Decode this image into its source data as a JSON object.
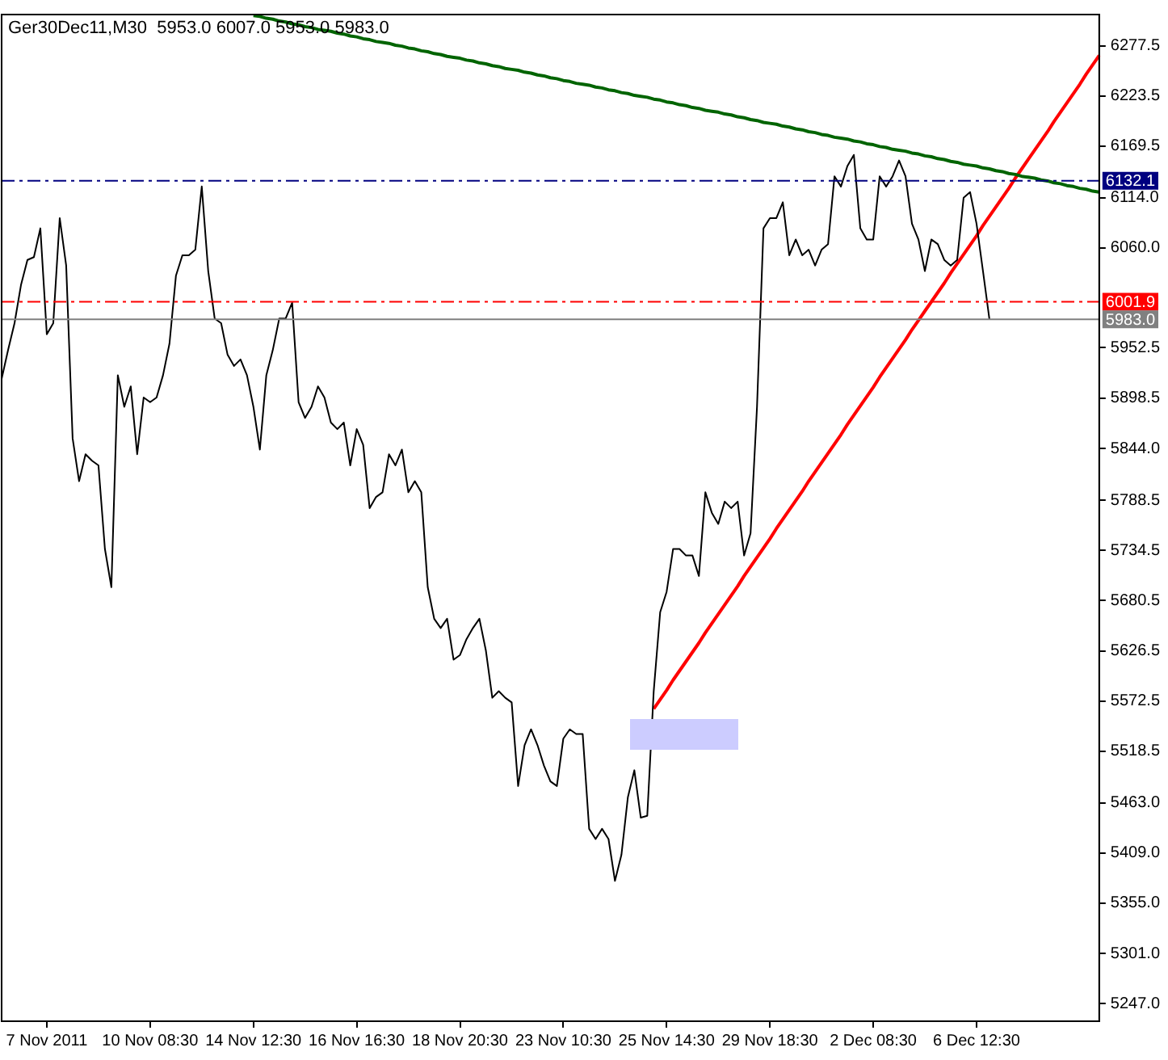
{
  "chart_data": {
    "type": "line",
    "title": "Ger30Dec11,M30  5953.0 6007.0 5953.0 5983.0",
    "categories": [
      null,
      null,
      null,
      null,
      null,
      null,
      null,
      "7 Nov 2011",
      null,
      null,
      null,
      null,
      null,
      null,
      null,
      null,
      null,
      null,
      null,
      null,
      null,
      null,
      null,
      "10 Nov 08:30",
      null,
      null,
      null,
      null,
      null,
      null,
      null,
      null,
      null,
      null,
      null,
      null,
      null,
      null,
      null,
      "14 Nov 12:30",
      null,
      null,
      null,
      null,
      null,
      null,
      null,
      null,
      null,
      null,
      null,
      null,
      null,
      null,
      null,
      "16 Nov 16:30",
      null,
      null,
      null,
      null,
      null,
      null,
      null,
      null,
      null,
      null,
      null,
      null,
      null,
      null,
      null,
      "18 Nov 20:30",
      null,
      null,
      null,
      null,
      null,
      null,
      null,
      null,
      null,
      null,
      null,
      null,
      null,
      null,
      null,
      "23 Nov 10:30",
      null,
      null,
      null,
      null,
      null,
      null,
      null,
      null,
      null,
      null,
      null,
      null,
      null,
      null,
      null,
      "25 Nov 14:30",
      null,
      null,
      null,
      null,
      null,
      null,
      null,
      null,
      null,
      null,
      null,
      null,
      null,
      null,
      null,
      "29 Nov 18:30",
      null,
      null,
      null,
      null,
      null,
      null,
      null,
      null,
      null,
      null,
      null,
      null,
      null,
      null,
      null,
      "2 Dec 08:30",
      null,
      null,
      null,
      null,
      null,
      null,
      null,
      null,
      null,
      null,
      null,
      null,
      null,
      null,
      null,
      "6 Dec 12:30",
      null,
      null,
      null,
      null,
      null,
      null,
      null,
      null,
      null,
      null,
      null,
      null,
      null,
      null,
      null,
      null,
      null,
      null,
      null
    ],
    "ylim": [
      5228,
      6311
    ],
    "yticks": [
      {
        "value": 6277.5,
        "label": "6277.5"
      },
      {
        "value": 6223.5,
        "label": "6223.5"
      },
      {
        "value": 6169.5,
        "label": "6169.5"
      },
      {
        "value": 6114,
        "label": "6114.0"
      },
      {
        "value": 6060,
        "label": "6060.0"
      },
      {
        "value": 5952.5,
        "label": "5952.5"
      },
      {
        "value": 5898.5,
        "label": "5898.5"
      },
      {
        "value": 5844,
        "label": "5844.0"
      },
      {
        "value": 5788.5,
        "label": "5788.5"
      },
      {
        "value": 5734.5,
        "label": "5734.5"
      },
      {
        "value": 5680.5,
        "label": "5680.5"
      },
      {
        "value": 5626.5,
        "label": "5626.5"
      },
      {
        "value": 5572.5,
        "label": "5572.5"
      },
      {
        "value": 5518.5,
        "label": "5518.5"
      },
      {
        "value": 5463,
        "label": "5463.0"
      },
      {
        "value": 5409,
        "label": "5409.0"
      },
      {
        "value": 5355,
        "label": "5355.0"
      },
      {
        "value": 5301,
        "label": "5301.0"
      },
      {
        "value": 5247,
        "label": "5247.0"
      }
    ],
    "grid": false,
    "legend": false,
    "marker": "none",
    "series": [
      {
        "color": "#000000",
        "values": [
          5919,
          5950,
          5979,
          6020,
          6047,
          6050,
          6081,
          5967,
          5979,
          6092,
          6041,
          5855,
          5809,
          5838,
          5831,
          5826,
          5736,
          5695,
          5923,
          5889,
          5911,
          5838,
          5899,
          5894,
          5899,
          5923,
          5957,
          6030,
          6052,
          6052,
          6058,
          6126,
          6035,
          5984,
          5979,
          5945,
          5933,
          5940,
          5923,
          5889,
          5843,
          5923,
          5950,
          5984,
          5984,
          6001,
          5894,
          5877,
          5889,
          5911,
          5899,
          5872,
          5865,
          5872,
          5826,
          5865,
          5848,
          5780,
          5792,
          5797,
          5838,
          5826,
          5843,
          5797,
          5809,
          5797,
          5695,
          5661,
          5651,
          5661,
          5617,
          5622,
          5639,
          5651,
          5661,
          5627,
          5576,
          5583,
          5576,
          5571,
          5481,
          5525,
          5542,
          5525,
          5503,
          5486,
          5481,
          5532,
          5542,
          5537,
          5537,
          5435,
          5424,
          5435,
          5424,
          5379,
          5407,
          5469,
          5498,
          5447,
          5449,
          5583,
          5668,
          5690,
          5736,
          5736,
          5729,
          5729,
          5707,
          5797,
          5775,
          5763,
          5787,
          5780,
          5787,
          5729,
          5753,
          5889,
          6081,
          6092,
          6092,
          6109,
          6052,
          6069,
          6052,
          6058,
          6041,
          6058,
          6064,
          6137,
          6126,
          6148,
          6160,
          6081,
          6069,
          6069,
          6137,
          6126,
          6137,
          6154,
          6137,
          6086,
          6069,
          6035,
          6069,
          6064,
          6047,
          6041,
          6047,
          6114,
          6120,
          6086,
          6035,
          5983,
          null,
          null,
          null,
          null,
          null,
          null,
          null,
          null,
          null,
          null,
          null,
          null,
          null,
          null,
          null,
          null,
          null
        ]
      },
      {
        "type": "line",
        "color": "#006400",
        "values": [
          null,
          null,
          null,
          null,
          null,
          null,
          null,
          null,
          null,
          null,
          null,
          null,
          null,
          null,
          null,
          null,
          null,
          null,
          null,
          null,
          null,
          null,
          null,
          null,
          null,
          null,
          null,
          null,
          null,
          null,
          null,
          null,
          null,
          null,
          null,
          null,
          null,
          null,
          null,
          6310,
          6309,
          6307,
          6306,
          6304,
          6303,
          6301,
          6300,
          6298,
          6297,
          6295,
          6294,
          6293,
          6291,
          6290,
          6288,
          6287,
          6285,
          6284,
          6282,
          6281,
          6280,
          6278,
          6277,
          6275,
          6274,
          6272,
          6271,
          6269,
          6268,
          6266,
          6265,
          6264,
          6262,
          6261,
          6259,
          6258,
          6256,
          6255,
          6253,
          6252,
          6251,
          6249,
          6248,
          6246,
          6245,
          6243,
          6242,
          6240,
          6239,
          6237,
          6236,
          6235,
          6233,
          6232,
          6230,
          6229,
          6227,
          6226,
          6224,
          6223,
          6222,
          6220,
          6219,
          6217,
          6216,
          6214,
          6213,
          6211,
          6210,
          6208,
          6207,
          6206,
          6204,
          6203,
          6201,
          6200,
          6198,
          6197,
          6195,
          6194,
          6193,
          6191,
          6190,
          6188,
          6187,
          6185,
          6184,
          6182,
          6181,
          6179,
          6178,
          6177,
          6175,
          6174,
          6172,
          6171,
          6169,
          6168,
          6166,
          6165,
          6164,
          6162,
          6161,
          6159,
          6158,
          6156,
          6155,
          6153,
          6152,
          6150,
          6149,
          6148,
          6146,
          6145,
          6143,
          6142,
          6140,
          6139,
          6137,
          6136,
          6135,
          6133,
          6132,
          6130,
          6129,
          6127,
          6126,
          6124,
          6123,
          6121,
          6120
        ]
      },
      {
        "type": "line",
        "color": "#ff0000",
        "values": [
          null,
          null,
          null,
          null,
          null,
          null,
          null,
          null,
          null,
          null,
          null,
          null,
          null,
          null,
          null,
          null,
          null,
          null,
          null,
          null,
          null,
          null,
          null,
          null,
          null,
          null,
          null,
          null,
          null,
          null,
          null,
          null,
          null,
          null,
          null,
          null,
          null,
          null,
          null,
          null,
          null,
          null,
          null,
          null,
          null,
          null,
          null,
          null,
          null,
          null,
          null,
          null,
          null,
          null,
          null,
          null,
          null,
          null,
          null,
          null,
          null,
          null,
          null,
          null,
          null,
          null,
          null,
          null,
          null,
          null,
          null,
          null,
          null,
          null,
          null,
          null,
          null,
          null,
          null,
          null,
          null,
          null,
          null,
          null,
          null,
          null,
          null,
          null,
          null,
          null,
          null,
          null,
          null,
          null,
          null,
          null,
          null,
          null,
          null,
          null,
          null,
          5564,
          5574,
          5584,
          5595,
          5605,
          5615,
          5625,
          5635,
          5646,
          5656,
          5666,
          5676,
          5686,
          5696,
          5707,
          5717,
          5727,
          5737,
          5747,
          5758,
          5768,
          5778,
          5788,
          5798,
          5809,
          5819,
          5829,
          5839,
          5849,
          5859,
          5870,
          5880,
          5890,
          5900,
          5910,
          5921,
          5931,
          5941,
          5951,
          5961,
          5972,
          5982,
          5992,
          6002,
          6012,
          6022,
          6033,
          6043,
          6053,
          6063,
          6073,
          6084,
          6094,
          6104,
          6114,
          6124,
          6135,
          6145,
          6155,
          6165,
          6175,
          6185,
          6196,
          6206,
          6216,
          6226,
          6236,
          6247,
          6257,
          6267
        ]
      }
    ],
    "ref_lines": [
      {
        "axis": "y",
        "value": 6132.1,
        "label": "6132.1",
        "color": "#000080",
        "line_style": "dashed"
      },
      {
        "axis": "y",
        "value": 6001.9,
        "label": "6001.9",
        "color": "#ff0000",
        "line_style": "dashed"
      },
      {
        "axis": "y",
        "value": 5983.0,
        "label": "5983.0",
        "color": "#808080",
        "line_style": "solid"
      }
    ]
  }
}
